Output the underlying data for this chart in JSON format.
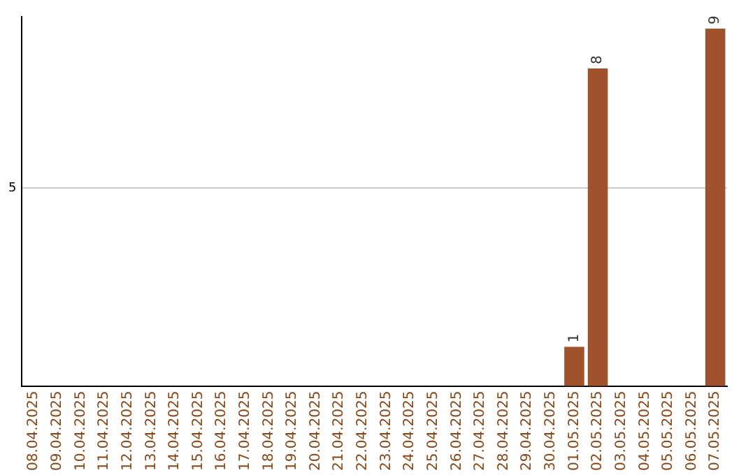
{
  "chart_data": {
    "type": "bar",
    "categories": [
      "08.04.2025",
      "09.04.2025",
      "10.04.2025",
      "11.04.2025",
      "12.04.2025",
      "13.04.2025",
      "14.04.2025",
      "15.04.2025",
      "16.04.2025",
      "17.04.2025",
      "18.04.2025",
      "19.04.2025",
      "20.04.2025",
      "21.04.2025",
      "22.04.2025",
      "23.04.2025",
      "24.04.2025",
      "25.04.2025",
      "26.04.2025",
      "27.04.2025",
      "28.04.2025",
      "29.04.2025",
      "30.04.2025",
      "01.05.2025",
      "02.05.2025",
      "03.05.2025",
      "04.05.2025",
      "05.05.2025",
      "06.05.2025",
      "07.05.2025"
    ],
    "values": [
      null,
      null,
      null,
      null,
      null,
      null,
      null,
      null,
      null,
      null,
      null,
      null,
      null,
      null,
      null,
      null,
      null,
      null,
      null,
      null,
      null,
      null,
      null,
      1,
      8,
      null,
      null,
      null,
      null,
      9
    ],
    "value_labels": [
      null,
      null,
      null,
      null,
      null,
      null,
      null,
      null,
      null,
      null,
      null,
      null,
      null,
      null,
      null,
      null,
      null,
      null,
      null,
      null,
      null,
      null,
      null,
      "1",
      "8",
      null,
      null,
      null,
      null,
      "9"
    ],
    "color": "#a0522d",
    "ylim": [
      0,
      9.3
    ],
    "yticks": [
      {
        "value": 0,
        "label": null
      },
      5
    ],
    "grid": "y",
    "legend": false
  }
}
